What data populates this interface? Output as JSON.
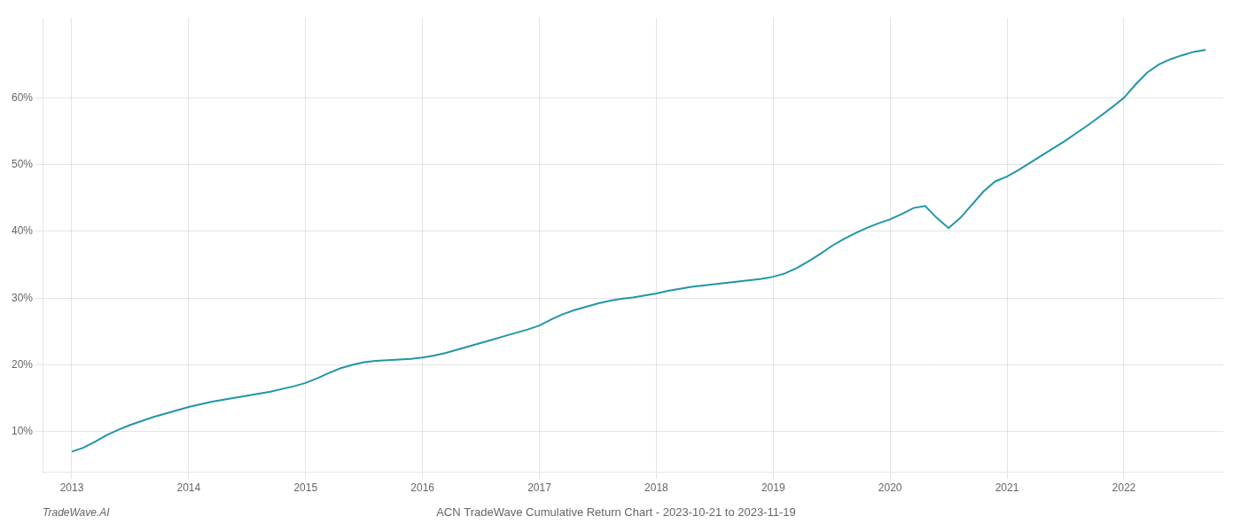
{
  "chart_data": {
    "type": "line",
    "title": "ACN TradeWave Cumulative Return Chart - 2023-10-21 to 2023-11-19",
    "annotations": [
      "TradeWave.AI"
    ],
    "color": "#2196a8",
    "grid": true,
    "x": [
      2013.0,
      2013.1,
      2013.2,
      2013.3,
      2013.4,
      2013.5,
      2013.6,
      2013.7,
      2013.8,
      2013.9,
      2014.0,
      2014.1,
      2014.2,
      2014.3,
      2014.4,
      2014.5,
      2014.6,
      2014.7,
      2014.8,
      2014.9,
      2015.0,
      2015.1,
      2015.2,
      2015.3,
      2015.4,
      2015.5,
      2015.6,
      2015.7,
      2015.8,
      2015.9,
      2016.0,
      2016.1,
      2016.2,
      2016.3,
      2016.4,
      2016.5,
      2016.6,
      2016.7,
      2016.8,
      2016.9,
      2017.0,
      2017.1,
      2017.2,
      2017.3,
      2017.4,
      2017.5,
      2017.6,
      2017.7,
      2017.8,
      2017.9,
      2018.0,
      2018.1,
      2018.2,
      2018.3,
      2018.4,
      2018.5,
      2018.6,
      2018.7,
      2018.8,
      2018.9,
      2019.0,
      2019.1,
      2019.2,
      2019.3,
      2019.4,
      2019.5,
      2019.6,
      2019.7,
      2019.8,
      2019.9,
      2020.0,
      2020.1,
      2020.2,
      2020.3,
      2020.4,
      2020.5,
      2020.6,
      2020.7,
      2020.8,
      2020.9,
      2021.0,
      2021.1,
      2021.2,
      2021.3,
      2021.4,
      2021.5,
      2021.6,
      2021.7,
      2021.8,
      2021.9,
      2022.0,
      2022.1,
      2022.2,
      2022.3,
      2022.4,
      2022.5,
      2022.6,
      2022.7
    ],
    "values": [
      7.0,
      7.6,
      8.5,
      9.5,
      10.3,
      11.0,
      11.6,
      12.2,
      12.7,
      13.2,
      13.7,
      14.1,
      14.5,
      14.8,
      15.1,
      15.4,
      15.7,
      16.0,
      16.4,
      16.8,
      17.3,
      18.0,
      18.8,
      19.5,
      20.0,
      20.4,
      20.6,
      20.7,
      20.8,
      20.9,
      21.1,
      21.4,
      21.8,
      22.3,
      22.8,
      23.3,
      23.8,
      24.3,
      24.8,
      25.3,
      25.9,
      26.8,
      27.6,
      28.2,
      28.7,
      29.2,
      29.6,
      29.9,
      30.1,
      30.4,
      30.7,
      31.1,
      31.4,
      31.7,
      31.9,
      32.1,
      32.3,
      32.5,
      32.7,
      32.9,
      33.2,
      33.7,
      34.5,
      35.5,
      36.6,
      37.8,
      38.8,
      39.7,
      40.5,
      41.2,
      41.8,
      42.6,
      43.5,
      43.8,
      42.0,
      40.5,
      42.0,
      44.0,
      46.0,
      47.5,
      48.2,
      49.2,
      50.3,
      51.4,
      52.5,
      53.6,
      54.8,
      56.0,
      57.3,
      58.6,
      60.0,
      62.0,
      63.8,
      65.0,
      65.8,
      66.4,
      66.9,
      67.2
    ],
    "xlim": [
      2012.75,
      2022.85
    ],
    "xticks": [
      2013,
      2014,
      2015,
      2016,
      2017,
      2018,
      2019,
      2020,
      2021,
      2022
    ],
    "ylim": [
      4,
      72
    ],
    "yticks": [
      {
        "value": 10,
        "label": "10%"
      },
      {
        "value": 20,
        "label": "20%"
      },
      {
        "value": 30,
        "label": "30%"
      },
      {
        "value": 40,
        "label": "40%"
      },
      {
        "value": 50,
        "label": "50%"
      },
      {
        "value": 60,
        "label": "60%"
      }
    ]
  }
}
